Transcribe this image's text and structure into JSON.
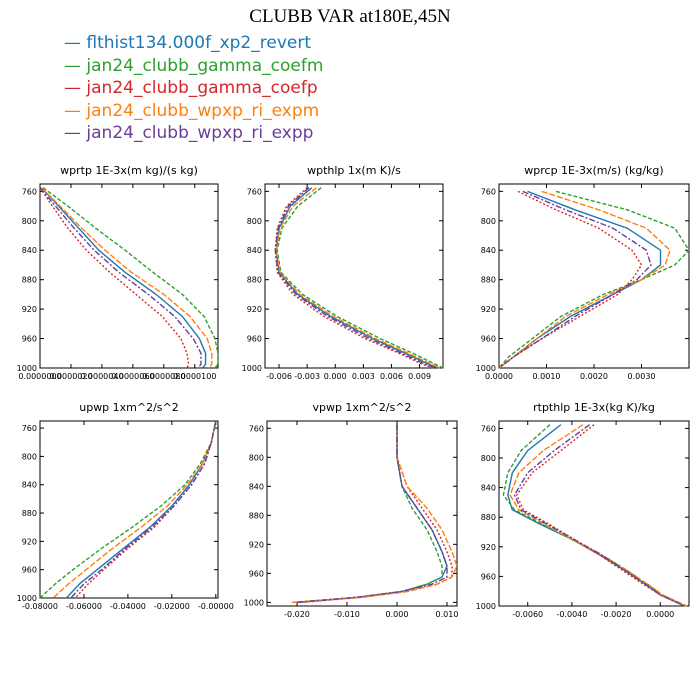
{
  "title": "CLUBB VAR at180E,45N",
  "legend": [
    {
      "label": "— flthist134.000f_xp2_revert",
      "color": "#1f77b4"
    },
    {
      "label": "— jan24_clubb_gamma_coefm",
      "color": "#2ca02c"
    },
    {
      "label": "— jan24_clubb_gamma_coefp",
      "color": "#d62728"
    },
    {
      "label": "— jan24_clubb_wpxp_ri_expm",
      "color": "#ff7f0e"
    },
    {
      "label": "— jan24_clubb_wpxp_ri_expp",
      "color": "#6a3d9a"
    }
  ],
  "chart_data": [
    {
      "type": "line",
      "title": "wprtp  1E-3x(m kg)/(s kg)",
      "ylim": [
        1000,
        750
      ],
      "yticks": [
        760,
        800,
        840,
        880,
        920,
        960,
        1000
      ],
      "xlim": [
        0,
        1.15e-05
      ],
      "xticks": [
        0.0,
        2e-06,
        4e-06,
        6e-06,
        8e-06,
        1e-05
      ],
      "xticklabels": [
        "0.0000000",
        "0.0000020",
        "0.0000040",
        "0.0000060",
        "0.0000080",
        "0.0000100"
      ],
      "y": [
        755,
        780,
        810,
        840,
        870,
        900,
        930,
        960,
        980,
        995,
        1000
      ],
      "series": [
        {
          "x": [
            1e-07,
            1.2e-06,
            2.5e-06,
            3.8e-06,
            5.5e-06,
            7.5e-06,
            9.2e-06,
            1.03e-05,
            1.07e-05,
            1.07e-05,
            1.05e-05
          ]
        },
        {
          "x": [
            2e-07,
            1.8e-06,
            3.6e-06,
            5.5e-06,
            7.3e-06,
            9.2e-06,
            1.06e-05,
            1.13e-05,
            1.15e-05,
            1.15e-05,
            1.13e-05
          ]
        },
        {
          "x": [
            0.0,
            8e-07,
            1.8e-06,
            3e-06,
            4.5e-06,
            6.2e-06,
            7.9e-06,
            9.1e-06,
            9.5e-06,
            9.6e-06,
            9.5e-06
          ]
        },
        {
          "x": [
            1e-07,
            1.3e-06,
            2.7e-06,
            4.2e-06,
            5.9e-06,
            8e-06,
            9.7e-06,
            1.08e-05,
            1.11e-05,
            1.11e-05,
            1.09e-05
          ]
        },
        {
          "x": [
            0.0,
            1e-06,
            2.2e-06,
            3.5e-06,
            5.1e-06,
            7e-06,
            8.7e-06,
            9.9e-06,
            1.04e-05,
            1.04e-05,
            1.02e-05
          ]
        }
      ]
    },
    {
      "type": "line",
      "title": "wpthlp  1x(m K)/s",
      "ylim": [
        1000,
        750
      ],
      "yticks": [
        760,
        800,
        840,
        880,
        920,
        960,
        1000
      ],
      "xlim": [
        -0.0075,
        0.0115
      ],
      "xticks": [
        -0.006,
        -0.003,
        0.0,
        0.003,
        0.006,
        0.009
      ],
      "xticklabels": [
        "-0.006",
        "-0.003",
        "0.000",
        "0.003",
        "0.006",
        "0.009"
      ],
      "y": [
        755,
        780,
        810,
        840,
        870,
        900,
        930,
        960,
        980,
        995,
        1000
      ],
      "series": [
        {
          "x": [
            -0.0025,
            -0.0048,
            -0.006,
            -0.0063,
            -0.006,
            -0.004,
            -0.0005,
            0.004,
            0.0075,
            0.01,
            0.011
          ]
        },
        {
          "x": [
            -0.0015,
            -0.004,
            -0.0057,
            -0.0062,
            -0.0058,
            -0.0035,
            0.0002,
            0.0048,
            0.0083,
            0.0107,
            0.0115
          ]
        },
        {
          "x": [
            -0.003,
            -0.0052,
            -0.0062,
            -0.0064,
            -0.0062,
            -0.0045,
            -0.0012,
            0.0032,
            0.0068,
            0.0093,
            0.0105
          ]
        },
        {
          "x": [
            -0.002,
            -0.0045,
            -0.0059,
            -0.0063,
            -0.0059,
            -0.0038,
            -0.0002,
            0.0043,
            0.0078,
            0.0103,
            0.0112
          ]
        },
        {
          "x": [
            -0.0028,
            -0.005,
            -0.0061,
            -0.0064,
            -0.0061,
            -0.0042,
            -0.0008,
            0.0036,
            0.0071,
            0.0096,
            0.0107
          ]
        }
      ]
    },
    {
      "type": "line",
      "title": "wprcp  1E-3x(m/s) (kg/kg)",
      "ylim": [
        1000,
        750
      ],
      "yticks": [
        760,
        800,
        840,
        880,
        920,
        960,
        1000
      ],
      "xlim": [
        0,
        0.004
      ],
      "xticks": [
        0.0,
        0.001,
        0.002,
        0.003
      ],
      "xticklabels": [
        "0.0000",
        "0.0010",
        "0.0020",
        "0.0030"
      ],
      "y": [
        760,
        785,
        810,
        840,
        860,
        880,
        900,
        930,
        960,
        985,
        1000
      ],
      "series": [
        {
          "x": [
            0.0006,
            0.0016,
            0.0027,
            0.0034,
            0.0034,
            0.003,
            0.0024,
            0.0015,
            0.0008,
            0.0003,
            0.0
          ]
        },
        {
          "x": [
            0.0012,
            0.0027,
            0.0037,
            0.004,
            0.0037,
            0.003,
            0.0022,
            0.0013,
            0.0007,
            0.0002,
            0.0
          ]
        },
        {
          "x": [
            0.0004,
            0.0012,
            0.0021,
            0.0028,
            0.003,
            0.0028,
            0.0025,
            0.0017,
            0.0009,
            0.0003,
            0.0
          ]
        },
        {
          "x": [
            0.0009,
            0.0021,
            0.0031,
            0.0036,
            0.0035,
            0.003,
            0.0023,
            0.0014,
            0.0008,
            0.0003,
            0.0
          ]
        },
        {
          "x": [
            0.0005,
            0.0014,
            0.0024,
            0.0031,
            0.0032,
            0.0029,
            0.0024,
            0.0016,
            0.0009,
            0.0003,
            0.0
          ]
        }
      ]
    },
    {
      "type": "line",
      "title": "upwp  1xm^2/s^2",
      "ylim": [
        1000,
        750
      ],
      "yticks": [
        760,
        800,
        840,
        880,
        920,
        960,
        1000
      ],
      "xlim": [
        -0.08,
        0.001
      ],
      "xticks": [
        -0.08,
        -0.06,
        -0.04,
        -0.02,
        0.0
      ],
      "xticklabels": [
        "-0.08000",
        "-0.06000",
        "-0.04000",
        "-0.02000",
        "-0.00000"
      ],
      "y": [
        750,
        780,
        810,
        840,
        870,
        900,
        930,
        960,
        980,
        1000
      ],
      "series": [
        {
          "x": [
            0.0,
            -0.002,
            -0.006,
            -0.012,
            -0.02,
            -0.03,
            -0.042,
            -0.054,
            -0.062,
            -0.068
          ]
        },
        {
          "x": [
            0.0,
            -0.002,
            -0.007,
            -0.014,
            -0.025,
            -0.038,
            -0.052,
            -0.065,
            -0.073,
            -0.08
          ]
        },
        {
          "x": [
            0.0,
            -0.002,
            -0.005,
            -0.011,
            -0.019,
            -0.028,
            -0.04,
            -0.051,
            -0.058,
            -0.064
          ]
        },
        {
          "x": [
            0.0,
            -0.002,
            -0.006,
            -0.013,
            -0.022,
            -0.034,
            -0.047,
            -0.059,
            -0.067,
            -0.074
          ]
        },
        {
          "x": [
            0.0,
            -0.002,
            -0.005,
            -0.011,
            -0.019,
            -0.029,
            -0.041,
            -0.052,
            -0.06,
            -0.066
          ]
        }
      ]
    },
    {
      "type": "line",
      "title": "vpwp  1xm^2/s^2",
      "ylim": [
        1005,
        750
      ],
      "yticks": [
        760,
        800,
        840,
        880,
        920,
        960,
        1000
      ],
      "xlim": [
        -0.026,
        0.012
      ],
      "xticks": [
        -0.02,
        -0.01,
        0.0,
        0.01
      ],
      "xticklabels": [
        "-0.020",
        "-0.010",
        "0.000",
        "0.010"
      ],
      "y": [
        755,
        800,
        840,
        870,
        900,
        930,
        950,
        965,
        975,
        985,
        993,
        1000
      ],
      "series": [
        {
          "x": [
            0.0,
            0.0,
            0.001,
            0.004,
            0.007,
            0.009,
            0.01,
            0.009,
            0.006,
            0.001,
            -0.008,
            -0.02
          ]
        },
        {
          "x": [
            0.0,
            0.0,
            0.001,
            0.003,
            0.006,
            0.008,
            0.009,
            0.009,
            0.006,
            0.001,
            -0.008,
            -0.021
          ]
        },
        {
          "x": [
            0.0,
            0.0,
            0.002,
            0.005,
            0.008,
            0.01,
            0.011,
            0.011,
            0.008,
            0.002,
            -0.007,
            -0.019
          ]
        },
        {
          "x": [
            0.0,
            0.0,
            0.002,
            0.006,
            0.009,
            0.011,
            0.012,
            0.011,
            0.008,
            0.002,
            -0.007,
            -0.021
          ]
        },
        {
          "x": [
            0.0,
            0.0,
            0.001,
            0.004,
            0.007,
            0.009,
            0.01,
            0.01,
            0.007,
            0.001,
            -0.008,
            -0.02
          ]
        }
      ]
    },
    {
      "type": "line",
      "title": "rtpthlp  1E-3x(kg K)/kg",
      "ylim": [
        1000,
        750
      ],
      "yticks": [
        760,
        800,
        840,
        880,
        920,
        960,
        1000
      ],
      "xlim": [
        -0.0073,
        0.0013
      ],
      "xticks": [
        -0.006,
        -0.004,
        -0.002,
        0.0
      ],
      "xticklabels": [
        "-0.0060",
        "-0.0040",
        "-0.0020",
        "0.0000"
      ],
      "y": [
        755,
        790,
        820,
        850,
        870,
        890,
        910,
        930,
        950,
        970,
        985,
        1000
      ],
      "series": [
        {
          "x": [
            -0.0045,
            -0.006,
            -0.0067,
            -0.0069,
            -0.0067,
            -0.0054,
            -0.004,
            -0.0028,
            -0.0017,
            -0.0007,
            0.0,
            0.0011
          ]
        },
        {
          "x": [
            -0.005,
            -0.0063,
            -0.0069,
            -0.0071,
            -0.0066,
            -0.0053,
            -0.004,
            -0.0027,
            -0.0016,
            -0.0006,
            0.0001,
            0.0011
          ]
        },
        {
          "x": [
            -0.003,
            -0.0045,
            -0.0058,
            -0.0065,
            -0.0062,
            -0.005,
            -0.0039,
            -0.0028,
            -0.0018,
            -0.0008,
            0.0,
            0.0012
          ]
        },
        {
          "x": [
            -0.0035,
            -0.0053,
            -0.0064,
            -0.0068,
            -0.0064,
            -0.0052,
            -0.004,
            -0.0027,
            -0.0016,
            -0.0006,
            0.0001,
            0.0012
          ]
        },
        {
          "x": [
            -0.0032,
            -0.0048,
            -0.006,
            -0.0066,
            -0.0063,
            -0.0051,
            -0.0039,
            -0.0027,
            -0.0017,
            -0.0007,
            0.0,
            0.0011
          ]
        }
      ]
    }
  ],
  "series_styles": [
    {
      "color": "#1f77b4",
      "dash": ""
    },
    {
      "color": "#2ca02c",
      "dash": "4,2"
    },
    {
      "color": "#d62728",
      "dash": "2,2"
    },
    {
      "color": "#ff7f0e",
      "dash": "6,2"
    },
    {
      "color": "#6a3d9a",
      "dash": "6,2,2,2"
    }
  ]
}
